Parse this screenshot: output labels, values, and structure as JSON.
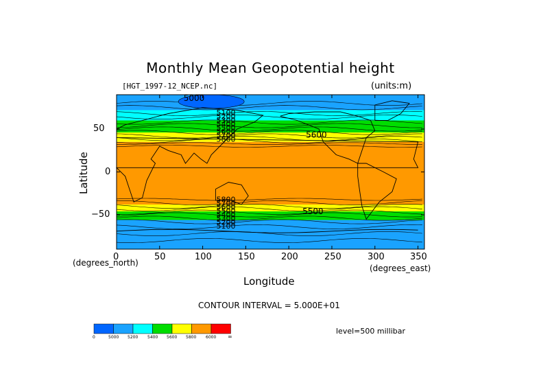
{
  "chart_data": {
    "type": "heatmap",
    "title": "Monthly Mean Geopotential height",
    "file_label": "[HGT_1997-12_NCEP.nc]",
    "units_label": "(units:m)",
    "xlabel": "Longitude",
    "ylabel": "Latitude",
    "x_unit_label": "(degrees_east)",
    "y_unit_label": "(degrees_north)",
    "xlim": [
      0,
      357.5
    ],
    "ylim": [
      -90,
      90
    ],
    "x_ticks": [
      "0",
      "50",
      "100",
      "150",
      "200",
      "250",
      "300",
      "350"
    ],
    "x_tick_values": [
      0,
      50,
      100,
      150,
      200,
      250,
      300,
      350
    ],
    "y_ticks": [
      "50",
      "0",
      "−50"
    ],
    "y_tick_values": [
      50,
      0,
      -50
    ],
    "contour_interval_text": "CONTOUR INTERVAL = 5.000E+01",
    "level_text": "level=500 millibar",
    "colorbar": {
      "labels": [
        "0",
        "5000",
        "5200",
        "5400",
        "5600",
        "5800",
        "6000",
        "∞"
      ],
      "colors": [
        "#0066ff",
        "#1aa3ff",
        "#00ffff",
        "#00dd00",
        "#ffff00",
        "#ff9900",
        "#ff0000"
      ]
    },
    "contour_labels": [
      {
        "text": "5000",
        "lon": 90,
        "lat": 83
      },
      {
        "text": "5600",
        "lon": 232,
        "lat": 40
      },
      {
        "text": "5500",
        "lon": 228,
        "lat": -49
      }
    ],
    "left_stack_labels_north": [
      "5100",
      "5200",
      "5300",
      "5400",
      "5500",
      "5600",
      "5700",
      "5800"
    ],
    "left_stack_labels_south": [
      "5800",
      "5700",
      "5600",
      "5500",
      "5400",
      "5300",
      "5200",
      "5100"
    ],
    "lat_bands": [
      {
        "from": 90,
        "to": 72,
        "value": 5100
      },
      {
        "from": 72,
        "to": 60,
        "value": 5300
      },
      {
        "from": 60,
        "to": 46,
        "value": 5500
      },
      {
        "from": 46,
        "to": 35,
        "value": 5700
      },
      {
        "from": 35,
        "to": 28,
        "value": 5820
      },
      {
        "from": 28,
        "to": -30,
        "value": 5880
      },
      {
        "from": -30,
        "to": -38,
        "value": 5800
      },
      {
        "from": -38,
        "to": -46,
        "value": 5600
      },
      {
        "from": -46,
        "to": -56,
        "value": 5420
      },
      {
        "from": -56,
        "to": -90,
        "value": 5100
      }
    ]
  }
}
